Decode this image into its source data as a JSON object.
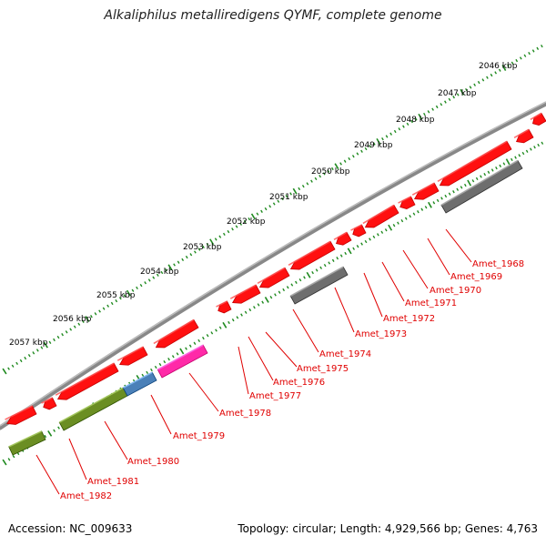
{
  "title": "Alkaliphilus metalliredigens QYMF, complete genome",
  "footer": {
    "accession": "Accession: NC_009633",
    "summary": "Topology: circular; Length: 4,929,566 bp; Genes: 4,763"
  },
  "colors": {
    "backbone": "#888888",
    "ticks": "#1f8a1f",
    "gene_red": "#ff1010",
    "gene_gray": "#6e6e6e",
    "gene_olive": "#6b8e23",
    "gene_blue": "#4a80b8",
    "gene_pink": "#ff2aa8",
    "label": "#e00000"
  },
  "kbp_labels": [
    "2046 kbp",
    "2047 kbp",
    "2048 kbp",
    "2049 kbp",
    "2050 kbp",
    "2051 kbp",
    "2052 kbp",
    "2053 kbp",
    "2054 kbp",
    "2055 kbp",
    "2056 kbp",
    "2057 kbp"
  ],
  "gene_labels": [
    "Amet_1968",
    "Amet_1969",
    "Amet_1970",
    "Amet_1971",
    "Amet_1972",
    "Amet_1973",
    "Amet_1974",
    "Amet_1975",
    "Amet_1976",
    "Amet_1977",
    "Amet_1978",
    "Amet_1979",
    "Amet_1980",
    "Amet_1981",
    "Amet_1982"
  ]
}
